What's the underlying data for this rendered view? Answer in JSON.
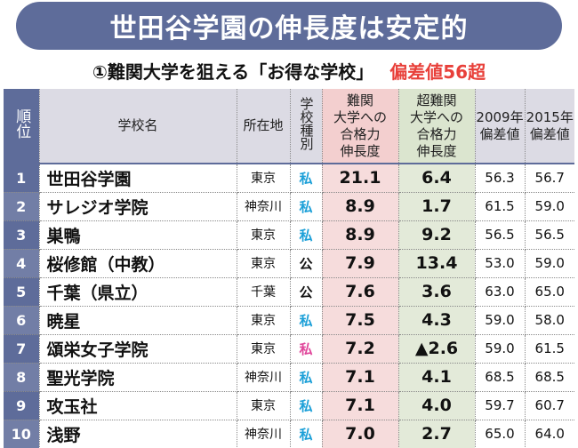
{
  "title": "世田谷学園の伸長度は安定的",
  "subtitle": "①難関大学を狙える「お得な学校」",
  "subtitle_note": "偏差値56超",
  "colors": {
    "banner": "#5e6c9a",
    "note": "#e8403a",
    "private": "#1da0d8",
    "private_girls": "#e0479b",
    "pink_col": "#f6dcdc",
    "green_col": "#e3ead9"
  },
  "headers": {
    "rank": "順位",
    "name": "学校名",
    "location": "所在地",
    "type": "学校種別",
    "hard_growth": [
      "難関",
      "大学への",
      "合格力",
      "伸長度"
    ],
    "super_growth": [
      "超難関",
      "大学への",
      "合格力",
      "伸長度"
    ],
    "dev2009": [
      "2009年",
      "偏差値"
    ],
    "dev2015": [
      "2015年",
      "偏差値"
    ]
  },
  "rows": [
    {
      "rank": "1",
      "name": "世田谷学園",
      "location": "東京",
      "type": "私",
      "type_color": "blue",
      "hard": "21.1",
      "super": "6.4",
      "dev2009": "56.3",
      "dev2015": "56.7"
    },
    {
      "rank": "2",
      "name": "サレジオ学院",
      "location": "神奈川",
      "type": "私",
      "type_color": "blue",
      "hard": "8.9",
      "super": "1.7",
      "dev2009": "61.5",
      "dev2015": "59.0"
    },
    {
      "rank": "3",
      "name": "巣鴨",
      "location": "東京",
      "type": "私",
      "type_color": "blue",
      "hard": "8.9",
      "super": "9.2",
      "dev2009": "56.5",
      "dev2015": "56.5"
    },
    {
      "rank": "4",
      "name": "桜修館（中教）",
      "location": "東京",
      "type": "公",
      "type_color": "black",
      "hard": "7.9",
      "super": "13.4",
      "dev2009": "53.0",
      "dev2015": "59.0"
    },
    {
      "rank": "5",
      "name": "千葉（県立）",
      "location": "千葉",
      "type": "公",
      "type_color": "black",
      "hard": "7.6",
      "super": "3.6",
      "dev2009": "63.0",
      "dev2015": "65.0"
    },
    {
      "rank": "6",
      "name": "暁星",
      "location": "東京",
      "type": "私",
      "type_color": "blue",
      "hard": "7.5",
      "super": "4.3",
      "dev2009": "59.0",
      "dev2015": "58.0"
    },
    {
      "rank": "7",
      "name": "頌栄女子学院",
      "location": "東京",
      "type": "私",
      "type_color": "pink",
      "hard": "7.2",
      "super": "▲2.6",
      "dev2009": "59.0",
      "dev2015": "61.5"
    },
    {
      "rank": "8",
      "name": "聖光学院",
      "location": "神奈川",
      "type": "私",
      "type_color": "blue",
      "hard": "7.1",
      "super": "4.1",
      "dev2009": "68.5",
      "dev2015": "68.5"
    },
    {
      "rank": "9",
      "name": "攻玉社",
      "location": "東京",
      "type": "私",
      "type_color": "blue",
      "hard": "7.1",
      "super": "4.0",
      "dev2009": "59.7",
      "dev2015": "60.7"
    },
    {
      "rank": "10",
      "name": "浅野",
      "location": "神奈川",
      "type": "私",
      "type_color": "blue",
      "hard": "7.0",
      "super": "2.7",
      "dev2009": "65.0",
      "dev2015": "64.0"
    }
  ]
}
